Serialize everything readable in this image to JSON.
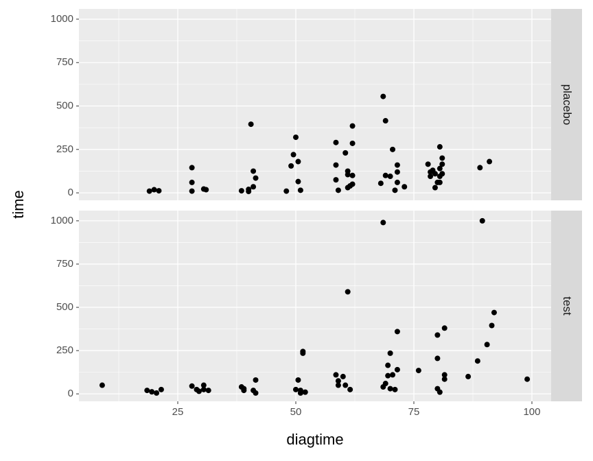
{
  "chart_data": [
    {
      "type": "scatter",
      "facet": "placebo",
      "ylabel": "time",
      "color": "#000000",
      "x": [
        19,
        20,
        21,
        28,
        28,
        28,
        30.5,
        31,
        38.5,
        40,
        40.5,
        41,
        41,
        41.5,
        40,
        48,
        49,
        49.5,
        50,
        50.5,
        50.5,
        51,
        58.5,
        58.5,
        58.5,
        59,
        60.5,
        61,
        61,
        61.5,
        62,
        62,
        62,
        62,
        61,
        68.5,
        69,
        69,
        68,
        70,
        70.5,
        71.5,
        71.5,
        71,
        71.5,
        73,
        78,
        78.5,
        78.5,
        79,
        79.5,
        79.5,
        80,
        80.5,
        80.5,
        80.5,
        81,
        81,
        81,
        80.5,
        89,
        91
      ],
      "y": [
        10,
        18,
        12,
        145,
        60,
        10,
        22,
        18,
        12,
        8,
        395,
        125,
        35,
        85,
        20,
        10,
        155,
        220,
        320,
        180,
        65,
        15,
        290,
        160,
        75,
        15,
        230,
        125,
        30,
        40,
        385,
        285,
        100,
        50,
        105,
        555,
        415,
        100,
        55,
        95,
        250,
        120,
        160,
        15,
        60,
        35,
        165,
        120,
        95,
        130,
        30,
        110,
        60,
        140,
        95,
        265,
        200,
        165,
        110,
        60,
        145,
        180
      ],
      "xlim": [
        4.07,
        104.07
      ],
      "ylim": [
        -43,
        1059
      ],
      "xticks": [
        25,
        50,
        75,
        100
      ],
      "yticks": [
        0,
        250,
        500,
        750,
        1000
      ],
      "grid": true
    },
    {
      "type": "scatter",
      "facet": "test",
      "xlabel": "diagtime",
      "color": "#000000",
      "x": [
        9,
        18.5,
        19.5,
        20.5,
        21.5,
        28,
        29,
        29.5,
        30.5,
        30.5,
        31.5,
        38.5,
        39,
        39,
        41,
        41.5,
        41.5,
        50,
        50.5,
        51,
        51,
        51.5,
        51.5,
        52,
        58.5,
        59,
        59,
        60,
        60.5,
        61,
        61.5,
        68.5,
        68.5,
        69,
        69.5,
        70,
        69.5,
        70,
        70.5,
        71,
        71.5,
        71.5,
        76,
        80,
        80,
        80,
        80.5,
        81.5,
        81.5,
        81.5,
        86.5,
        88.5,
        89.5,
        90.5,
        91.5,
        92,
        99
      ],
      "y": [
        50,
        20,
        12,
        5,
        25,
        45,
        25,
        15,
        50,
        25,
        20,
        40,
        20,
        30,
        20,
        5,
        80,
        25,
        80,
        5,
        20,
        245,
        235,
        10,
        110,
        75,
        50,
        100,
        50,
        590,
        25,
        990,
        40,
        60,
        165,
        235,
        105,
        30,
        110,
        25,
        140,
        360,
        135,
        340,
        205,
        30,
        10,
        380,
        85,
        110,
        100,
        190,
        1000,
        285,
        395,
        470,
        85
      ],
      "xlim": [
        4.07,
        104.07
      ],
      "ylim": [
        -43,
        1059
      ],
      "xticks": [
        25,
        50,
        75,
        100
      ],
      "yticks": [
        0,
        250,
        500,
        750,
        1000
      ],
      "grid": true
    }
  ]
}
